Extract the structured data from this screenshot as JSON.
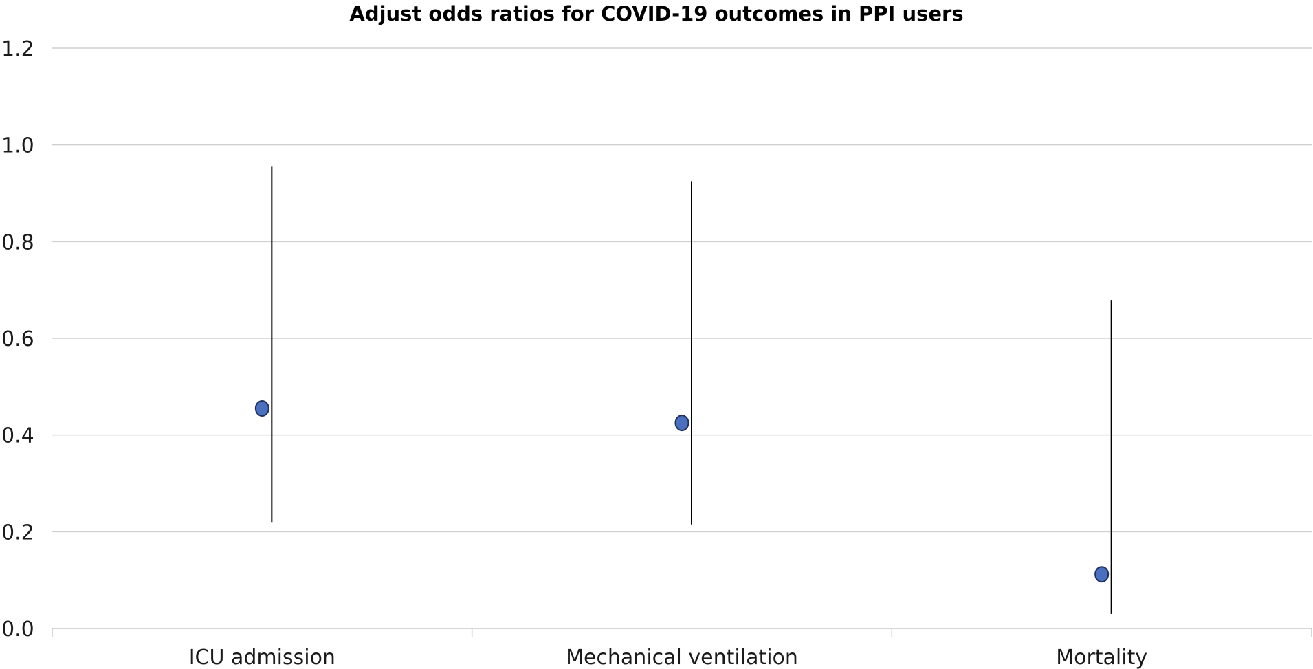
{
  "chart_data": {
    "type": "scatter",
    "title": "Adjust odds ratios for COVID-19 outcomes in PPI users",
    "xlabel": "",
    "ylabel": "",
    "categories": [
      "ICU admission",
      "Mechanical ventilation",
      "Mortality"
    ],
    "values": [
      0.455,
      0.425,
      0.112
    ],
    "ci_lower": [
      0.22,
      0.215,
      0.03
    ],
    "ci_upper": [
      0.955,
      0.925,
      0.678
    ],
    "ylim": [
      0,
      1.2
    ],
    "yticks": [
      "0.0",
      "0.2",
      "0.4",
      "0.6",
      "0.8",
      "1.0",
      "1.2"
    ],
    "grid": true,
    "legend": "none",
    "marker_color": "#4a6fbe",
    "marker_edge_color": "#1f2f5a",
    "error_bar_color": "#000000",
    "gridline_color": "#d0d0d0"
  }
}
